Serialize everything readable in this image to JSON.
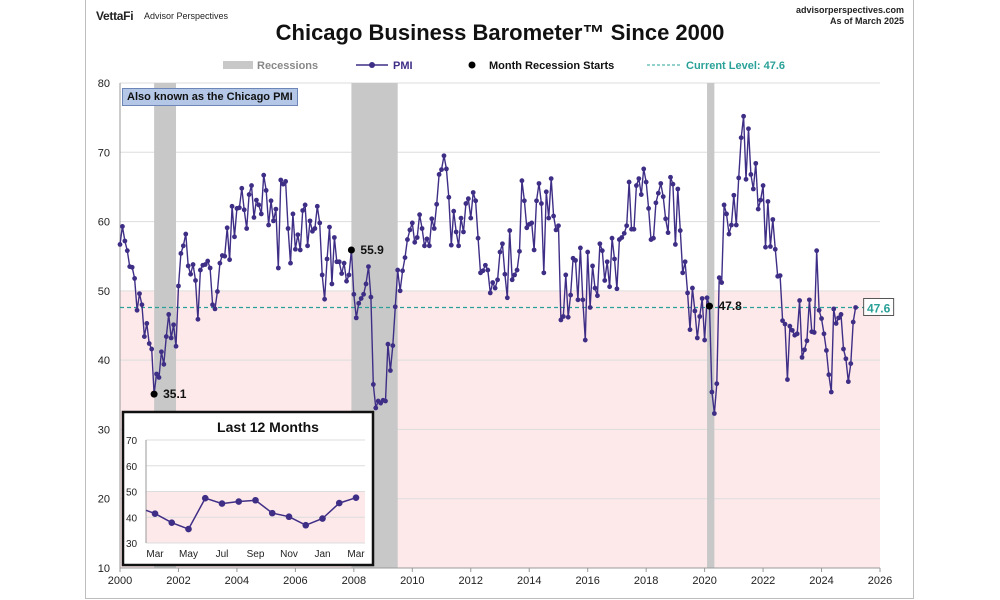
{
  "header": {
    "brand": "VettaFi",
    "brand_sub": "Advisor Perspectives",
    "site": "advisorperspectives.com",
    "as_of": "As of March 2025"
  },
  "chart_data": {
    "type": "line",
    "title": "Chicago Business Barometer™ Since 2000",
    "legend": {
      "placement": "top",
      "recessions": "Recessions",
      "pmi": "PMI",
      "recession_start": "Month Recession Starts",
      "current": "Current Level: 47.6"
    },
    "note": "Also known as the Chicago PMI",
    "colors": {
      "pmi": "#3f2e86",
      "recession": "#c8c8c8",
      "below50": "#fde9ea",
      "current": "#2aa198",
      "grid": "#dddddd"
    },
    "start": "2000-01",
    "xlim": [
      2000,
      2026
    ],
    "ylim": [
      10,
      80
    ],
    "xticks": [
      "2000",
      "2002",
      "2004",
      "2006",
      "2008",
      "2010",
      "2012",
      "2014",
      "2016",
      "2018",
      "2020",
      "2022",
      "2024",
      "2026"
    ],
    "yticks": [
      "10",
      "20",
      "30",
      "40",
      "50",
      "60",
      "70",
      "80"
    ],
    "shade_below": 50,
    "current_level": 47.6,
    "current_label": "47.6",
    "recessions": [
      [
        "2001-03",
        "2001-11"
      ],
      [
        "2007-12",
        "2009-06"
      ],
      [
        "2020-02",
        "2020-04"
      ]
    ],
    "annotations": [
      {
        "month": "2001-03",
        "value": 35.1,
        "label": "35.1"
      },
      {
        "month": "2007-12",
        "value": 55.9,
        "label": "55.9"
      },
      {
        "month": "2020-03",
        "value": 47.8,
        "label": "47.8"
      }
    ],
    "pmi": [
      56.7,
      59.3,
      57.2,
      55.8,
      53.5,
      53.4,
      51.8,
      47.2,
      49.6,
      48.0,
      43.4,
      45.3,
      42.4,
      41.6,
      35.1,
      38.0,
      37.5,
      41.2,
      39.4,
      43.4,
      46.6,
      43.2,
      45.1,
      42.0,
      50.7,
      55.4,
      56.5,
      58.2,
      53.6,
      52.4,
      53.8,
      51.5,
      45.9,
      53.0,
      53.7,
      53.8,
      54.3,
      53.3,
      48.0,
      47.4,
      49.9,
      54.0,
      55.1,
      55.0,
      59.1,
      54.5,
      62.2,
      57.8,
      61.9,
      62.0,
      64.8,
      61.7,
      59.0,
      63.9,
      65.2,
      60.6,
      63.1,
      62.4,
      61.1,
      66.7,
      64.5,
      59.5,
      63.0,
      60.1,
      61.8,
      53.3,
      66.0,
      65.4,
      65.8,
      59.0,
      54.0,
      61.1,
      56.0,
      58.1,
      55.9,
      61.6,
      62.4,
      56.5,
      60.1,
      58.6,
      59.0,
      62.2,
      59.8,
      52.3,
      48.8,
      54.6,
      59.2,
      51.0,
      57.7,
      54.2,
      54.2,
      52.5,
      54.0,
      51.4,
      52.3,
      55.9,
      49.5,
      46.1,
      48.2,
      48.9,
      49.5,
      51.0,
      53.5,
      49.1,
      36.5,
      33.1,
      34.1,
      33.8,
      34.2,
      34.1,
      42.3,
      38.5,
      42.1,
      47.7,
      53.0,
      50.0,
      52.9,
      54.8,
      57.4,
      58.8,
      59.8,
      57.0,
      57.7,
      61.0,
      59.0,
      56.5,
      57.5,
      56.5,
      60.4,
      59.0,
      62.5,
      66.8,
      67.5,
      69.5,
      67.6,
      63.5,
      56.6,
      61.5,
      58.5,
      56.5,
      60.5,
      58.5,
      62.6,
      63.3,
      60.5,
      64.2,
      63.0,
      57.6,
      52.6,
      52.9,
      53.7,
      53.0,
      49.7,
      51.2,
      50.4,
      51.6,
      55.6,
      56.8,
      52.4,
      49.0,
      58.7,
      51.6,
      52.3,
      53.0,
      55.7,
      65.9,
      63.0,
      59.1,
      59.6,
      59.8,
      55.9,
      63.0,
      65.5,
      62.6,
      52.6,
      64.3,
      60.5,
      66.2,
      60.8,
      58.8,
      59.4,
      45.8,
      46.3,
      52.3,
      46.2,
      49.4,
      54.7,
      54.4,
      48.7,
      56.2,
      48.7,
      42.9,
      55.6,
      47.6,
      53.6,
      50.4,
      49.3,
      56.8,
      55.8,
      51.5,
      54.2,
      50.6,
      57.6,
      54.6,
      50.3,
      57.4,
      57.7,
      58.3,
      59.4,
      65.7,
      58.9,
      58.9,
      65.2,
      66.2,
      63.9,
      67.6,
      65.7,
      61.9,
      57.4,
      57.6,
      62.7,
      64.1,
      65.5,
      63.6,
      60.4,
      58.4,
      66.4,
      65.4,
      56.7,
      64.7,
      58.7,
      52.6,
      54.2,
      49.7,
      44.4,
      50.4,
      47.1,
      43.2,
      46.3,
      48.9,
      42.9,
      49.0,
      47.8,
      35.4,
      32.3,
      36.6,
      51.9,
      51.2,
      62.4,
      61.1,
      58.2,
      59.5,
      63.8,
      59.5,
      66.3,
      72.1,
      75.2,
      66.1,
      73.4,
      66.8,
      64.7,
      68.4,
      61.8,
      63.1,
      65.2,
      56.3,
      62.9,
      56.4,
      60.3,
      56.0,
      52.1,
      52.2,
      45.7,
      45.2,
      37.2,
      44.9,
      44.3,
      43.6,
      43.8,
      48.6,
      40.4,
      41.5,
      42.8,
      48.7,
      44.1,
      44.0,
      55.8,
      47.2,
      46.0,
      43.8,
      41.4,
      37.9,
      35.4,
      47.4,
      45.3,
      46.1,
      46.6,
      41.6,
      40.2,
      36.9,
      39.5,
      45.5,
      47.6
    ],
    "inset": {
      "title": "Last 12 Months",
      "ylim": [
        30,
        70
      ],
      "yticks": [
        "30",
        "40",
        "50",
        "60",
        "70"
      ],
      "xticks": [
        "Mar",
        "May",
        "Jul",
        "Sep",
        "Nov",
        "Jan",
        "Mar"
      ],
      "values": [
        43.8,
        41.4,
        37.9,
        35.4,
        47.4,
        45.3,
        46.1,
        46.6,
        41.6,
        40.2,
        36.9,
        39.5,
        45.5,
        47.6
      ]
    }
  }
}
